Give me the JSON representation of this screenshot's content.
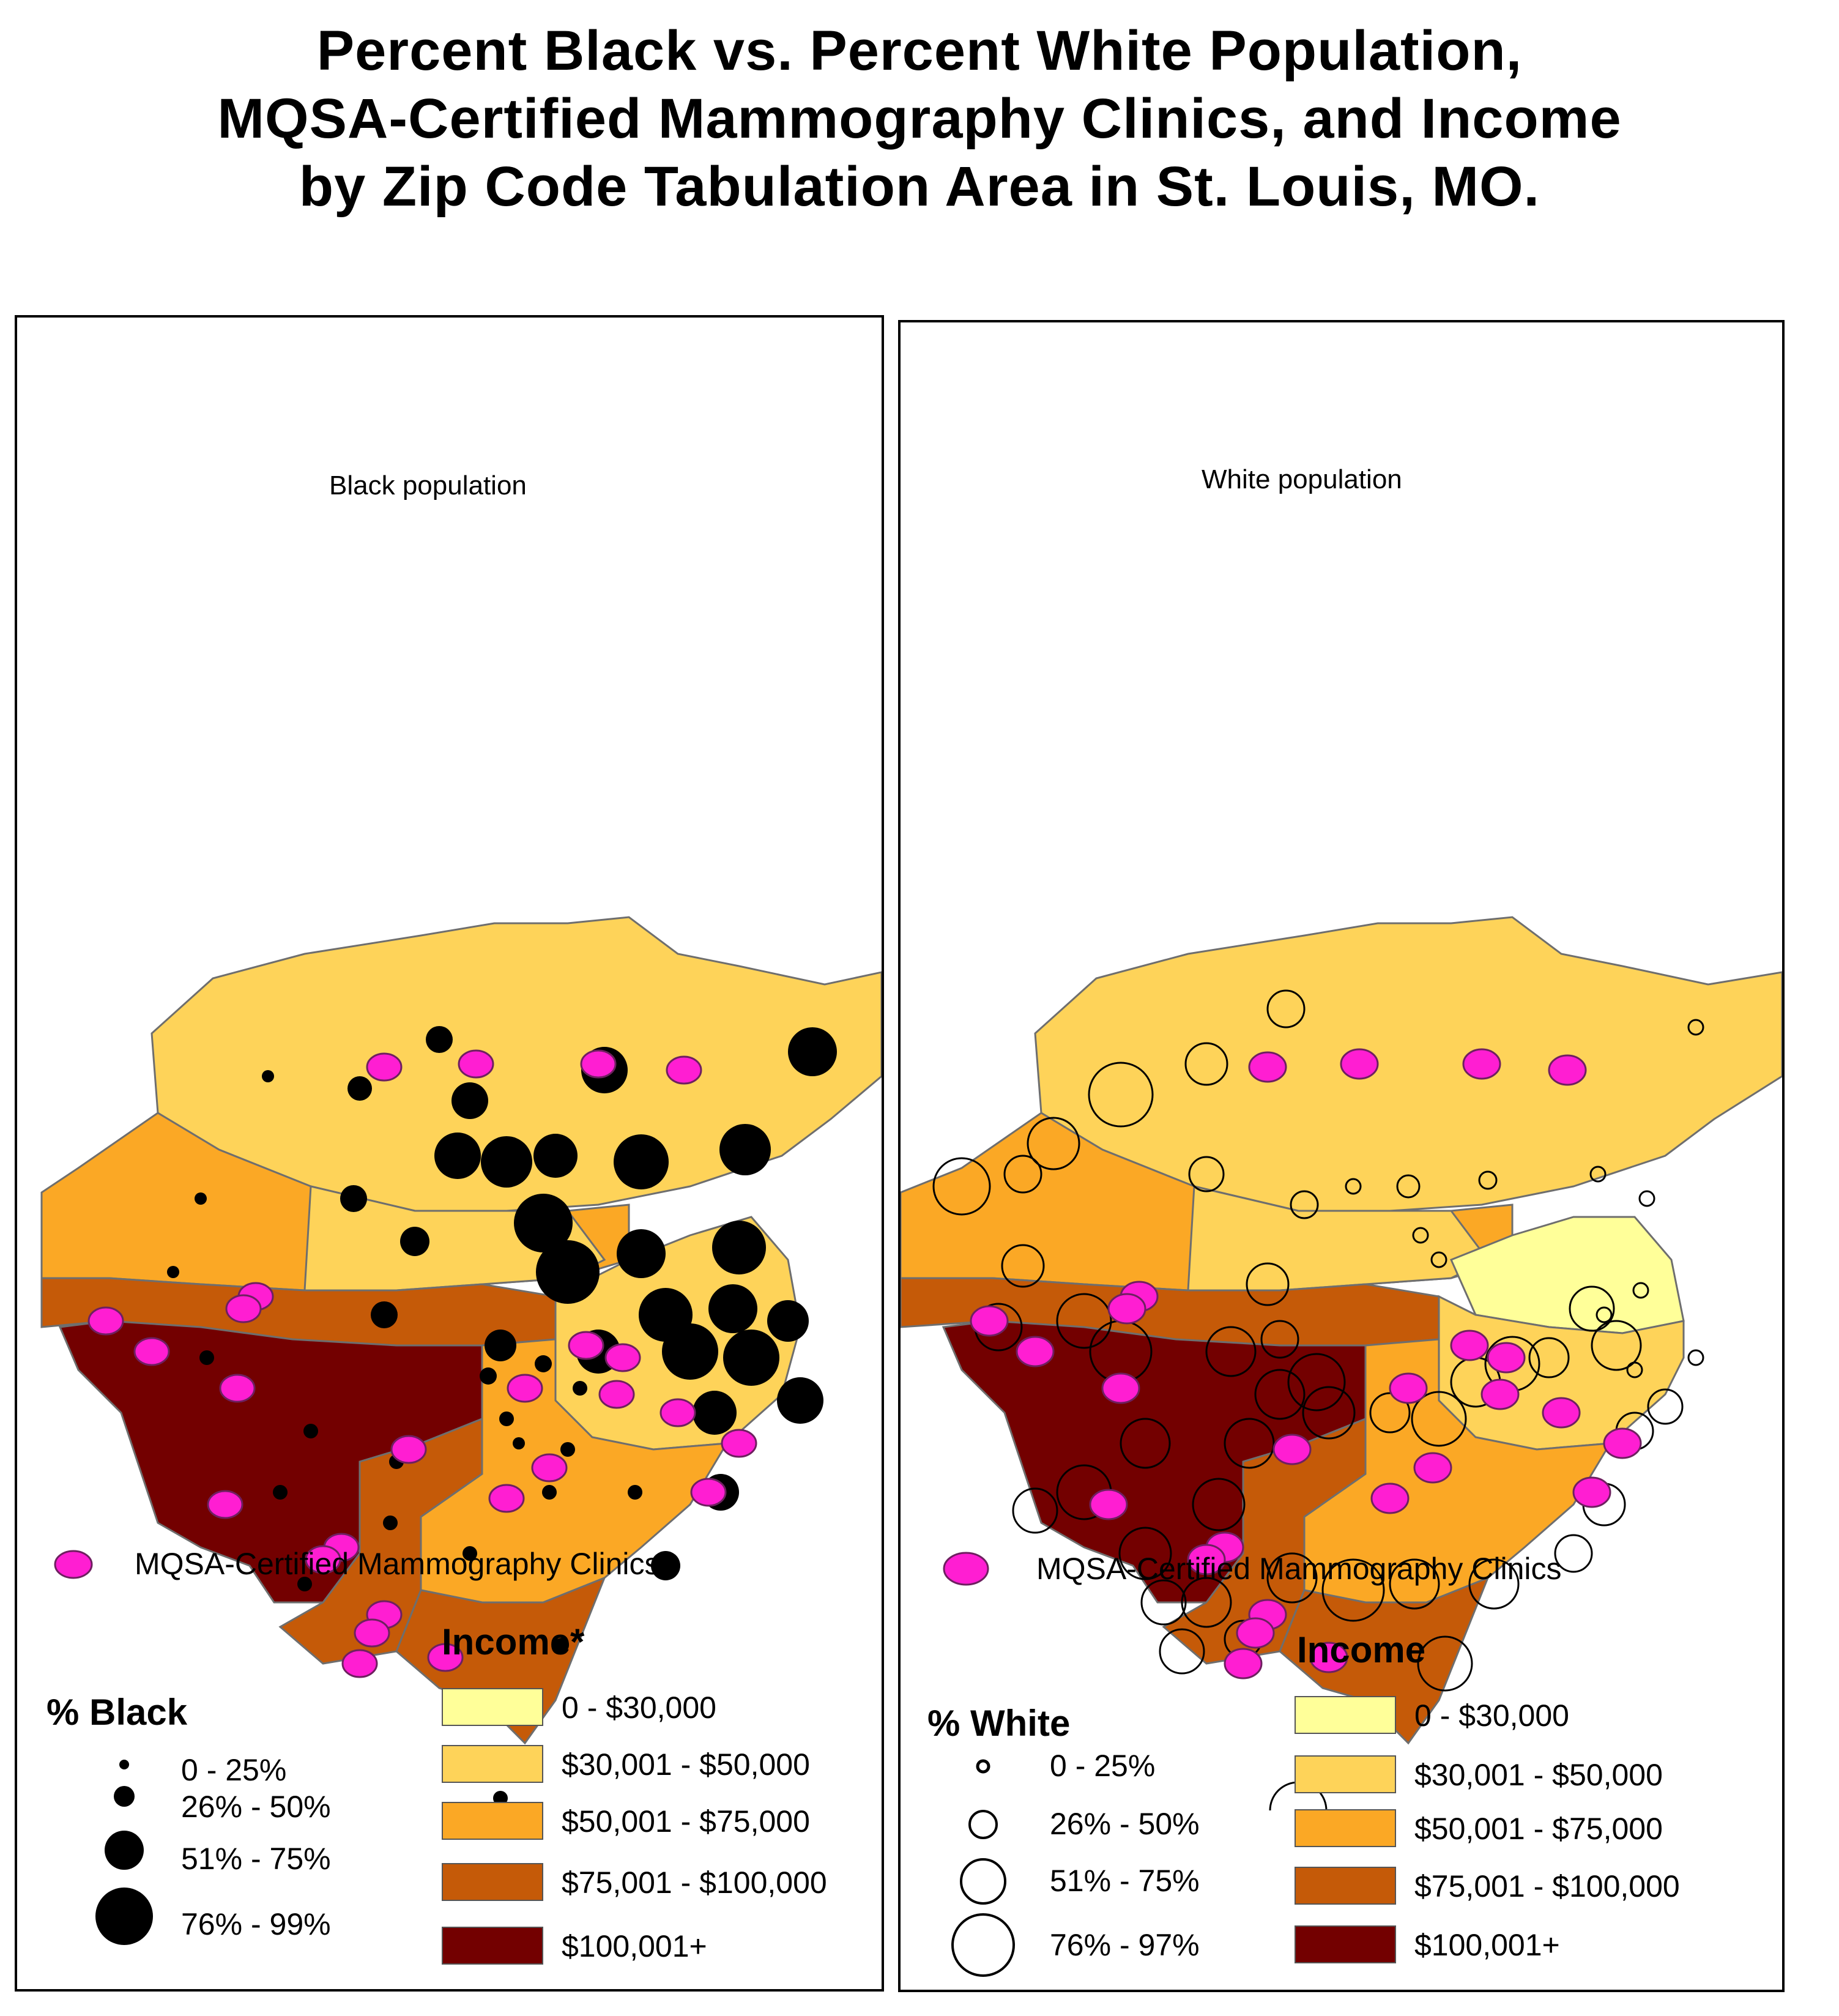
{
  "title": {
    "line1": "Percent Black vs. Percent White Population,",
    "line2": "MQSA-Certified Mammography Clinics, and Income",
    "line3": "by Zip Code Tabulation Area in St. Louis, MO."
  },
  "colors": {
    "income_0_30k": "#ffff99",
    "income_30_50k": "#fed359",
    "income_50_75k": "#fba825",
    "income_75_100k": "#c55a08",
    "income_100k_plus": "#730000",
    "clinic_fill": "#ff1ed2",
    "black_dot": "#000000",
    "boundary": "#6e6e6e"
  },
  "left_panel": {
    "subtitle": "Black population",
    "clinic_legend": "MQSA-Certified Mammography Clinics",
    "income_heading": "Income*",
    "pct_heading": "% Black",
    "pct_classes": [
      "0 - 25%",
      "26% - 50%",
      "51% - 75%",
      "76% - 99%"
    ],
    "income_classes": [
      "0 - $30,000",
      "$30,001 - $50,000",
      "$50,001 - $75,000",
      "$75,001 - $100,000",
      "$100,001+"
    ]
  },
  "right_panel": {
    "subtitle": "White population",
    "clinic_legend": "MQSA-Certified Mammography Clinics",
    "income_heading": "Income",
    "pct_heading": "% White",
    "pct_classes": [
      "0 - 25%",
      "26% - 50%",
      "51% - 75%",
      "76% - 97%"
    ],
    "income_classes": [
      "0 - $30,000",
      "$30,001 - $50,000",
      "$50,001 - $75,000",
      "$75,001 - $100,000",
      "$100,001+"
    ]
  }
}
